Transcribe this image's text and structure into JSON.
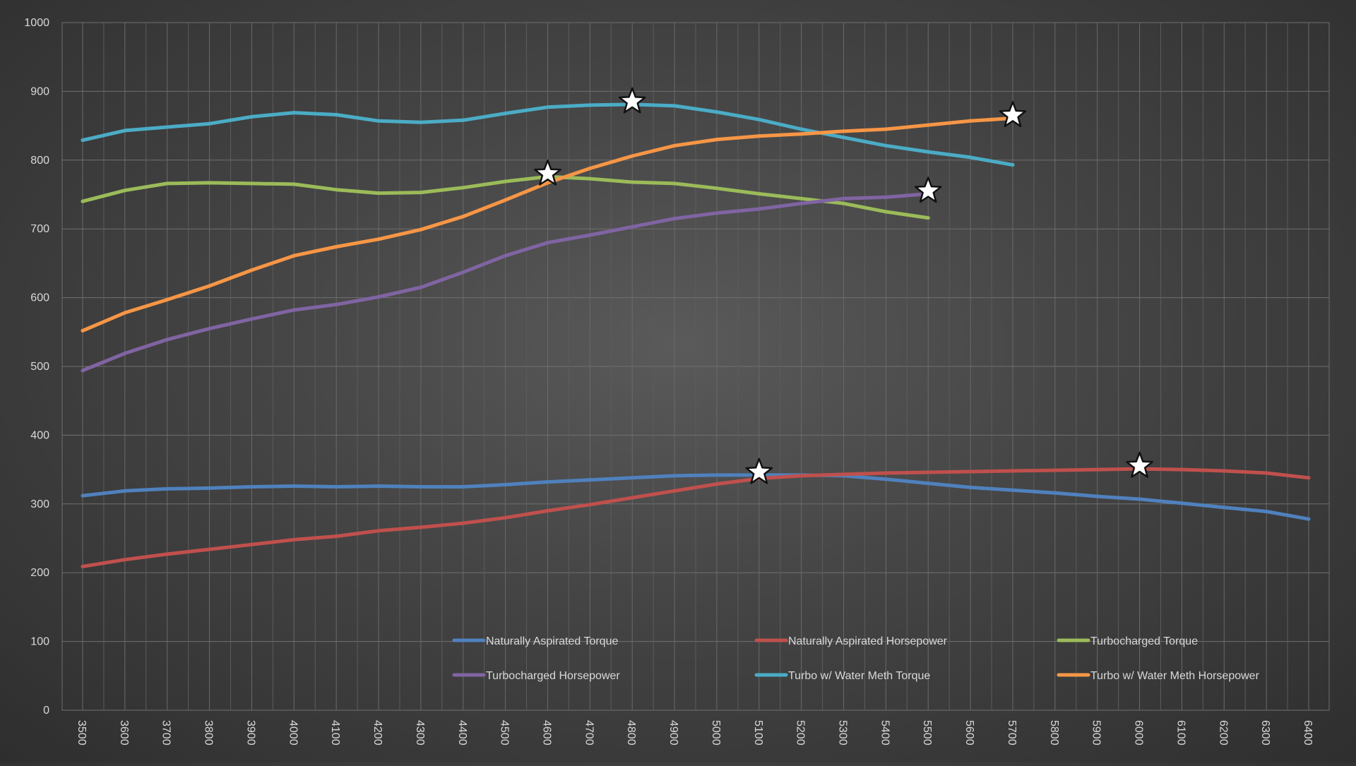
{
  "chart_data": {
    "type": "line",
    "title": "",
    "xlabel": "",
    "ylabel": "",
    "x": [
      3500,
      3600,
      3700,
      3800,
      3900,
      4000,
      4100,
      4200,
      4300,
      4400,
      4500,
      4600,
      4700,
      4800,
      4900,
      5000,
      5100,
      5200,
      5300,
      5400,
      5500,
      5600,
      5700,
      5800,
      5900,
      6000,
      6100,
      6200,
      6300,
      6400
    ],
    "xlim": [
      3500,
      6400
    ],
    "ylim": [
      0,
      1000
    ],
    "yticks": [
      0,
      100,
      200,
      300,
      400,
      500,
      600,
      700,
      800,
      900,
      1000
    ],
    "grid": true,
    "legend_position": "bottom",
    "background_color": "#3f3f3f",
    "series": [
      {
        "name": "Naturally Aspirated Torque",
        "color": "#4f81bd",
        "values": [
          312,
          319,
          322,
          323,
          325,
          326,
          325,
          326,
          325,
          325,
          328,
          332,
          335,
          338,
          341,
          342,
          342,
          342,
          341,
          336,
          330,
          324,
          320,
          316,
          311,
          307,
          301,
          295,
          289,
          278
        ],
        "peak_index": 16
      },
      {
        "name": "Naturally Aspirated Horsepower",
        "color": "#c0504d",
        "values": [
          209,
          219,
          227,
          234,
          241,
          248,
          253,
          261,
          266,
          272,
          280,
          290,
          299,
          309,
          319,
          329,
          337,
          341,
          343,
          345,
          346,
          347,
          348,
          349,
          350,
          351,
          350,
          348,
          345,
          338
        ],
        "peak_index": 25
      },
      {
        "name": "Turbocharged Torque",
        "color": "#9bbb59",
        "values": [
          740,
          756,
          766,
          767,
          766,
          765,
          757,
          752,
          753,
          760,
          769,
          776,
          773,
          768,
          766,
          759,
          751,
          744,
          737,
          725,
          716,
          null,
          null,
          null,
          null,
          null,
          null,
          null,
          null,
          null
        ],
        "peak_index": 11
      },
      {
        "name": "Turbocharged Horsepower",
        "color": "#8064a2",
        "values": [
          494,
          519,
          539,
          555,
          569,
          582,
          590,
          601,
          615,
          637,
          661,
          680,
          691,
          703,
          715,
          723,
          729,
          737,
          744,
          746,
          751,
          null,
          null,
          null,
          null,
          null,
          null,
          null,
          null,
          null
        ],
        "peak_index": 20
      },
      {
        "name": "Turbo w/ Water Meth Torque",
        "color": "#4bacc6",
        "values": [
          829,
          843,
          848,
          853,
          863,
          869,
          866,
          857,
          855,
          858,
          868,
          877,
          880,
          881,
          879,
          870,
          859,
          845,
          833,
          821,
          812,
          804,
          793,
          null,
          null,
          null,
          null,
          null,
          null,
          null
        ],
        "peak_index": 13
      },
      {
        "name": "Turbo w/ Water Meth Horsepower",
        "color": "#f79646",
        "values": [
          552,
          578,
          597,
          617,
          640,
          661,
          674,
          685,
          699,
          718,
          742,
          767,
          788,
          806,
          821,
          830,
          835,
          838,
          842,
          845,
          851,
          857,
          861,
          null,
          null,
          null,
          null,
          null,
          null,
          null
        ],
        "peak_index": 22
      }
    ]
  }
}
